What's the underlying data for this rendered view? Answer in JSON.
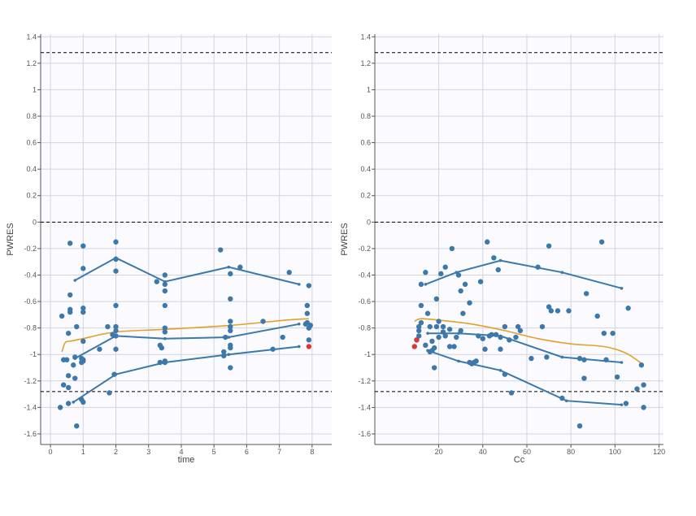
{
  "chart_data": [
    {
      "type": "scatter",
      "xlabel": "time",
      "ylabel": "PWRES",
      "xlim": [
        -0.3,
        8.6
      ],
      "ylim": [
        -1.68,
        1.42
      ],
      "xticks": [
        "0",
        "1",
        "2",
        "3",
        "4",
        "5",
        "6",
        "7",
        "8"
      ],
      "yticks": [
        "-1.6",
        "-1.4",
        "-1.2",
        "-1",
        "-0.8",
        "-0.6",
        "-0.4",
        "-0.2",
        "0",
        "0.2",
        "0.4",
        "0.6",
        "0.8",
        "1",
        "1.2",
        "1.4"
      ],
      "reference_lines": [
        -1.28,
        0,
        1.28
      ],
      "colors": {
        "points": "#3d78aa",
        "outlier": "#d8383a",
        "percentiles": "#3b79aa",
        "spline": "#e3a12a",
        "reference": "#000000",
        "background": "#fafaff"
      },
      "points": [
        [
          0.3,
          -1.4
        ],
        [
          0.35,
          -0.71
        ],
        [
          0.4,
          -1.04
        ],
        [
          0.4,
          -1.23
        ],
        [
          0.5,
          -1.04
        ],
        [
          0.55,
          -1.37
        ],
        [
          0.55,
          -1.25
        ],
        [
          0.55,
          -1.16
        ],
        [
          0.55,
          -0.84
        ],
        [
          0.6,
          -0.68
        ],
        [
          0.6,
          -0.66
        ],
        [
          0.6,
          -0.55
        ],
        [
          0.6,
          -0.16
        ],
        [
          0.7,
          -1.08
        ],
        [
          0.75,
          -1.18
        ],
        [
          0.75,
          -1.02
        ],
        [
          0.8,
          -1.54
        ],
        [
          0.8,
          -0.79
        ],
        [
          0.95,
          -1.34
        ],
        [
          0.95,
          -1.06
        ],
        [
          0.95,
          -1.03
        ],
        [
          1.0,
          -1.36
        ],
        [
          1.0,
          -1.05
        ],
        [
          1.0,
          -1.04
        ],
        [
          1.0,
          -0.9
        ],
        [
          1.0,
          -0.68
        ],
        [
          1.0,
          -0.65
        ],
        [
          1.0,
          -0.35
        ],
        [
          1.0,
          -0.18
        ],
        [
          1.5,
          -0.96
        ],
        [
          1.75,
          -0.79
        ],
        [
          1.8,
          -1.29
        ],
        [
          1.9,
          -0.85
        ],
        [
          1.95,
          -1.15
        ],
        [
          2.0,
          -0.96
        ],
        [
          2.0,
          -0.86
        ],
        [
          2.0,
          -0.82
        ],
        [
          2.0,
          -0.79
        ],
        [
          2.0,
          -0.63
        ],
        [
          2.0,
          -0.37
        ],
        [
          2.0,
          -0.28
        ],
        [
          2.0,
          -0.15
        ],
        [
          3.25,
          -0.45
        ],
        [
          3.35,
          -0.93
        ],
        [
          3.35,
          -1.06
        ],
        [
          3.4,
          -0.95
        ],
        [
          3.5,
          -1.06
        ],
        [
          3.5,
          -1.05
        ],
        [
          3.5,
          -0.83
        ],
        [
          3.5,
          -0.8
        ],
        [
          3.5,
          -0.63
        ],
        [
          3.5,
          -0.52
        ],
        [
          3.5,
          -0.47
        ],
        [
          3.5,
          -0.4
        ],
        [
          5.2,
          -0.21
        ],
        [
          5.3,
          -0.98
        ],
        [
          5.3,
          -1.01
        ],
        [
          5.35,
          -0.87
        ],
        [
          5.5,
          -1.1
        ],
        [
          5.5,
          -0.95
        ],
        [
          5.5,
          -0.93
        ],
        [
          5.5,
          -0.82
        ],
        [
          5.5,
          -0.79
        ],
        [
          5.5,
          -0.75
        ],
        [
          5.5,
          -0.58
        ],
        [
          5.5,
          -0.39
        ],
        [
          5.8,
          -0.34
        ],
        [
          6.5,
          -0.75
        ],
        [
          6.8,
          -0.96
        ],
        [
          7.1,
          -0.87
        ],
        [
          7.3,
          -0.38
        ],
        [
          7.8,
          -0.77
        ],
        [
          7.85,
          -0.63
        ],
        [
          7.85,
          -0.69
        ],
        [
          7.85,
          -0.76
        ],
        [
          7.9,
          -0.8
        ],
        [
          7.9,
          -0.89
        ],
        [
          7.9,
          -0.48
        ],
        [
          7.95,
          -0.78
        ]
      ],
      "outliers": [
        [
          7.9,
          -0.94
        ]
      ],
      "percentile_lines": [
        [
          [
            0.75,
            -0.44
          ],
          [
            2.0,
            -0.27
          ],
          [
            3.5,
            -0.45
          ],
          [
            5.45,
            -0.34
          ],
          [
            7.6,
            -0.47
          ]
        ],
        [
          [
            0.75,
            -1.03
          ],
          [
            2.0,
            -0.86
          ],
          [
            3.5,
            -0.88
          ],
          [
            5.45,
            -0.87
          ],
          [
            7.6,
            -0.77
          ]
        ],
        [
          [
            0.7,
            -1.36
          ],
          [
            2.0,
            -1.15
          ],
          [
            3.5,
            -1.06
          ],
          [
            5.45,
            -1.0
          ],
          [
            7.6,
            -0.94
          ]
        ]
      ],
      "spline": [
        [
          0.35,
          -0.98
        ],
        [
          0.45,
          -0.91
        ],
        [
          0.6,
          -0.9
        ],
        [
          1.0,
          -0.88
        ],
        [
          2.0,
          -0.83
        ],
        [
          3.5,
          -0.81
        ],
        [
          5.5,
          -0.78
        ],
        [
          7.2,
          -0.74
        ],
        [
          7.9,
          -0.73
        ]
      ]
    },
    {
      "type": "scatter",
      "xlabel": "Cc",
      "ylabel": "PWRES",
      "xlim": [
        -9,
        122
      ],
      "ylim": [
        -1.68,
        1.42
      ],
      "xticks": [
        "20",
        "40",
        "60",
        "80",
        "100",
        "120"
      ],
      "yticks": [
        "-1.6",
        "-1.4",
        "-1.2",
        "-1",
        "-0.8",
        "-0.6",
        "-0.4",
        "-0.2",
        "0",
        "0.2",
        "0.4",
        "0.6",
        "0.8",
        "1",
        "1.2",
        "1.4"
      ],
      "reference_lines": [
        -1.28,
        0,
        1.28
      ],
      "colors": {
        "points": "#3d78aa",
        "outlier": "#d8383a",
        "percentiles": "#3b79aa",
        "spline": "#e3a12a",
        "reference": "#000000",
        "background": "#fafaff"
      },
      "points": [
        [
          10,
          -0.89
        ],
        [
          11,
          -0.86
        ],
        [
          11,
          -0.82
        ],
        [
          11,
          -0.79
        ],
        [
          12,
          -0.76
        ],
        [
          12,
          -0.63
        ],
        [
          12,
          -0.47
        ],
        [
          14,
          -0.38
        ],
        [
          14,
          -0.93
        ],
        [
          15,
          -0.69
        ],
        [
          16,
          -0.98
        ],
        [
          16,
          -0.79
        ],
        [
          17,
          -0.9
        ],
        [
          17,
          -0.97
        ],
        [
          18,
          -0.95
        ],
        [
          18,
          -1.1
        ],
        [
          19,
          -0.79
        ],
        [
          19,
          -0.58
        ],
        [
          20,
          -0.87
        ],
        [
          20,
          -0.75
        ],
        [
          21,
          -0.39
        ],
        [
          22,
          -0.83
        ],
        [
          22,
          -0.79
        ],
        [
          23,
          -0.34
        ],
        [
          23,
          -0.86
        ],
        [
          25,
          -0.94
        ],
        [
          25,
          -0.81
        ],
        [
          26,
          -0.2
        ],
        [
          27,
          -0.94
        ],
        [
          28,
          -0.87
        ],
        [
          29,
          -0.4
        ],
        [
          30,
          -0.52
        ],
        [
          30,
          -0.82
        ],
        [
          31,
          -0.69
        ],
        [
          32,
          -0.47
        ],
        [
          34,
          -0.61
        ],
        [
          34,
          -1.06
        ],
        [
          35,
          -1.07
        ],
        [
          36,
          -1.06
        ],
        [
          37,
          -1.05
        ],
        [
          38,
          -0.86
        ],
        [
          39,
          -0.45
        ],
        [
          40,
          -0.88
        ],
        [
          41,
          -0.96
        ],
        [
          42,
          -0.15
        ],
        [
          43,
          -0.86
        ],
        [
          44,
          -0.85
        ],
        [
          45,
          -0.27
        ],
        [
          46,
          -0.85
        ],
        [
          47,
          -0.36
        ],
        [
          48,
          -0.96
        ],
        [
          48,
          -0.87
        ],
        [
          50,
          -1.15
        ],
        [
          50,
          -0.79
        ],
        [
          52,
          -0.89
        ],
        [
          53,
          -1.29
        ],
        [
          55,
          -0.87
        ],
        [
          56,
          -0.79
        ],
        [
          57,
          -0.82
        ],
        [
          62,
          -1.03
        ],
        [
          65,
          -0.34
        ],
        [
          67,
          -0.79
        ],
        [
          69,
          -1.02
        ],
        [
          70,
          -0.18
        ],
        [
          70,
          -0.64
        ],
        [
          71,
          -0.67
        ],
        [
          74,
          -0.67
        ],
        [
          76,
          -1.33
        ],
        [
          79,
          -0.67
        ],
        [
          84,
          -1.03
        ],
        [
          84,
          -1.54
        ],
        [
          86,
          -1.18
        ],
        [
          86,
          -1.04
        ],
        [
          87,
          -0.54
        ],
        [
          92,
          -0.71
        ],
        [
          94,
          -0.15
        ],
        [
          95,
          -0.84
        ],
        [
          96,
          -1.04
        ],
        [
          99,
          -0.84
        ],
        [
          101,
          -1.17
        ],
        [
          105,
          -1.37
        ],
        [
          106,
          -0.65
        ],
        [
          110,
          -1.26
        ],
        [
          112,
          -1.08
        ],
        [
          113,
          -1.23
        ],
        [
          113,
          -1.4
        ]
      ],
      "outliers": [
        [
          9,
          -0.94
        ],
        [
          10,
          -0.89
        ]
      ],
      "percentile_lines": [
        [
          [
            14,
            -0.47
          ],
          [
            28,
            -0.38
          ],
          [
            48,
            -0.29
          ],
          [
            76,
            -0.38
          ],
          [
            103,
            -0.5
          ]
        ],
        [
          [
            15,
            -0.84
          ],
          [
            29,
            -0.84
          ],
          [
            48,
            -0.86
          ],
          [
            76,
            -1.02
          ],
          [
            103,
            -1.06
          ]
        ],
        [
          [
            15,
            -0.97
          ],
          [
            29,
            -1.05
          ],
          [
            48,
            -1.12
          ],
          [
            78,
            -1.35
          ],
          [
            103,
            -1.38
          ]
        ]
      ],
      "spline": [
        [
          9,
          -0.75
        ],
        [
          12,
          -0.73
        ],
        [
          20,
          -0.74
        ],
        [
          35,
          -0.77
        ],
        [
          50,
          -0.82
        ],
        [
          65,
          -0.88
        ],
        [
          80,
          -0.92
        ],
        [
          95,
          -0.94
        ],
        [
          105,
          -0.99
        ],
        [
          113,
          -1.08
        ]
      ]
    }
  ]
}
